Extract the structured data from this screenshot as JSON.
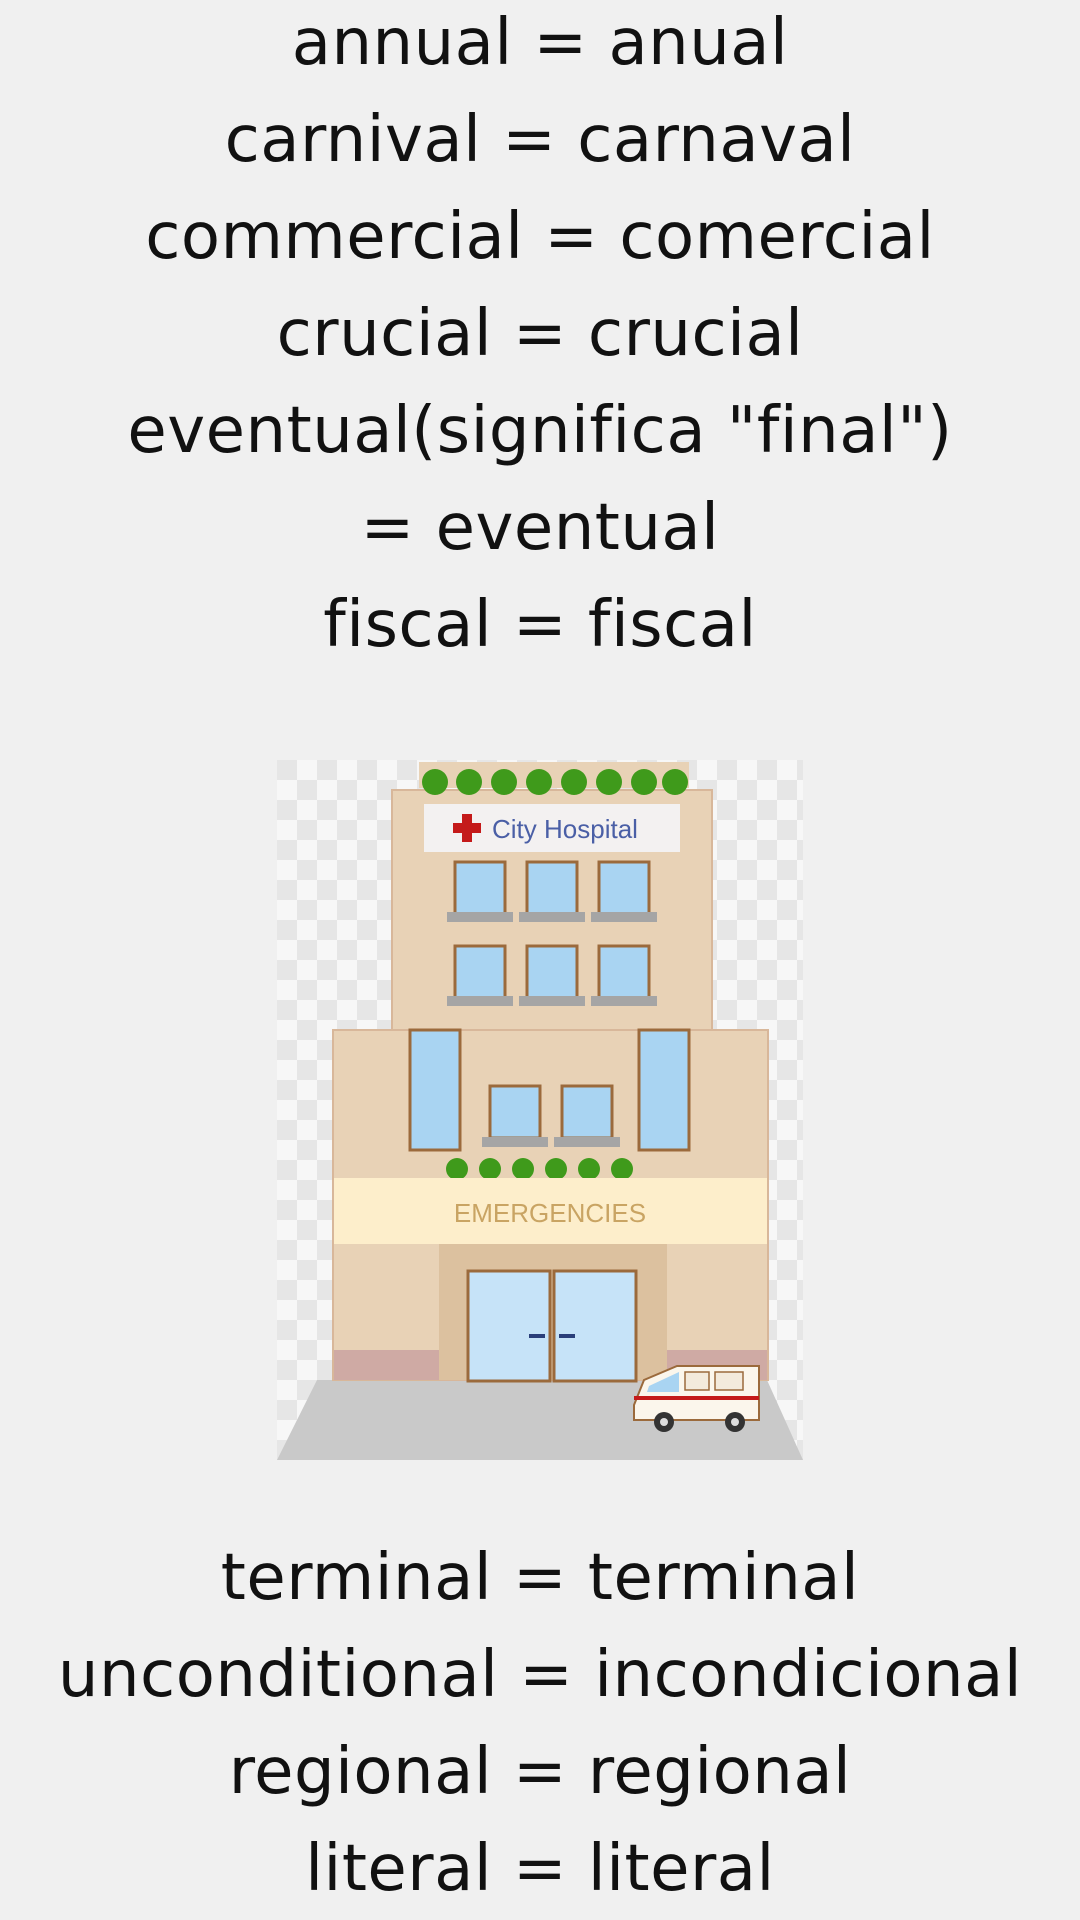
{
  "vocabulary_top": [
    {
      "text": "annual = anual"
    },
    {
      "text": "carnival = carnaval"
    },
    {
      "text": "commercial = comercial"
    },
    {
      "text": "crucial = crucial"
    },
    {
      "text": "eventual(significa \"final\") = eventual"
    },
    {
      "text": "fiscal = fiscal"
    }
  ],
  "illustration": {
    "sign_text": "City Hospital",
    "banner_text": "EMERGENCIES",
    "colors": {
      "background": "#f0f0f0",
      "building": "#e8d2b6",
      "building_trim": "#d8b79a",
      "window": "#a9d4f2",
      "window_frame": "#9b6a3c",
      "plants": "#3f9a1b",
      "banner": "#fdeecb",
      "banner_text": "#c9a463",
      "sign_text": "#4a5fa6",
      "cross": "#c41a1a",
      "ground": "#c9c9c9"
    }
  },
  "vocabulary_bottom": [
    {
      "text": "terminal = terminal"
    },
    {
      "text": "unconditional = incondicional"
    },
    {
      "text": "regional = regional"
    },
    {
      "text": "literal = literal"
    }
  ]
}
